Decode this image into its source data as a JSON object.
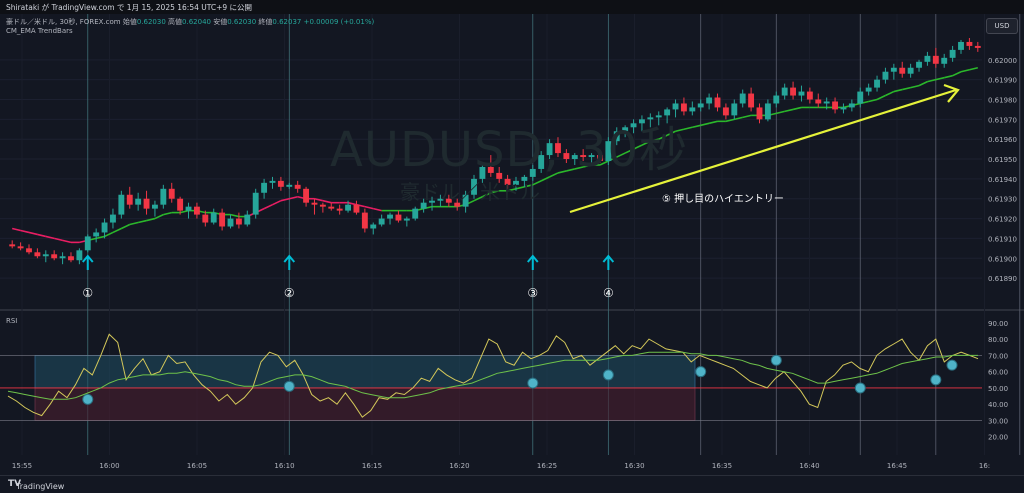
{
  "topbar": {
    "text": "Shirataki が TradingView.com で 1月 15, 2025 16:54 UTC+9 に公開"
  },
  "legend": {
    "symbol_line": "豪ドル／米ドル, 30秒, FOREX.com",
    "ohlc": [
      {
        "label": "始値",
        "value": "0.62030"
      },
      {
        "label": "高値",
        "value": "0.62040"
      },
      {
        "label": "安値",
        "value": "0.62030"
      },
      {
        "label": "終値",
        "value": "0.62037"
      }
    ],
    "change": "+0.00009 (+0.01%)",
    "indicator": "CM_EMA TrendBars",
    "rsi_label": "RSI"
  },
  "watermark": {
    "symbol": "AUDUSD, 30秒",
    "name": "豪ドル／米ドル"
  },
  "currency_button": "USD",
  "footer_brand": "TradingView",
  "colors": {
    "bg": "#131722",
    "up": "#26a69a",
    "down": "#f23645",
    "ema_up": "#2bb82b",
    "ema_down": "#e91e63",
    "arrow": "#00bcd4",
    "annotation": "#e5f23a",
    "rsi": "#d4c85a",
    "rsi_ma": "#6ec24a"
  },
  "chart_data": [
    {
      "type": "candlestick",
      "title": "",
      "x_ticks": [
        "15:55",
        "16:00",
        "16:05",
        "16:10",
        "16:15",
        "16:20",
        "16:25",
        "16:30",
        "16:35",
        "16:40",
        "16:45",
        "16:"
      ],
      "y_ticks": [
        "0.62000",
        "0.61990",
        "0.61980",
        "0.61970",
        "0.61960",
        "0.61950",
        "0.61940",
        "0.61930",
        "0.61920",
        "0.61910",
        "0.61900",
        "0.61890"
      ],
      "ylim": [
        0.61884,
        0.62012
      ],
      "candles": [
        [
          0.61907,
          0.61909,
          0.61905,
          0.61906
        ],
        [
          0.61906,
          0.61908,
          0.61904,
          0.61905
        ],
        [
          0.61905,
          0.61907,
          0.61902,
          0.61903
        ],
        [
          0.61903,
          0.61905,
          0.619,
          0.61901
        ],
        [
          0.61901,
          0.61904,
          0.61898,
          0.61902
        ],
        [
          0.61902,
          0.61904,
          0.61899,
          0.619
        ],
        [
          0.619,
          0.61903,
          0.61897,
          0.61901
        ],
        [
          0.61901,
          0.61903,
          0.61898,
          0.61899
        ],
        [
          0.61899,
          0.61905,
          0.61897,
          0.61904
        ],
        [
          0.61904,
          0.61912,
          0.61903,
          0.61911
        ],
        [
          0.61911,
          0.61915,
          0.61908,
          0.61913
        ],
        [
          0.61913,
          0.6192,
          0.6191,
          0.61918
        ],
        [
          0.61918,
          0.61925,
          0.61915,
          0.61922
        ],
        [
          0.61922,
          0.61934,
          0.6192,
          0.61932
        ],
        [
          0.61932,
          0.61936,
          0.61925,
          0.61927
        ],
        [
          0.61927,
          0.61933,
          0.61924,
          0.6193
        ],
        [
          0.6193,
          0.61934,
          0.61922,
          0.61925
        ],
        [
          0.61925,
          0.61929,
          0.61921,
          0.61927
        ],
        [
          0.61927,
          0.61937,
          0.61925,
          0.61935
        ],
        [
          0.61935,
          0.61938,
          0.61928,
          0.6193
        ],
        [
          0.6193,
          0.61931,
          0.61922,
          0.61924
        ],
        [
          0.61924,
          0.61928,
          0.6192,
          0.61926
        ],
        [
          0.61926,
          0.61928,
          0.6192,
          0.61922
        ],
        [
          0.61922,
          0.61924,
          0.61916,
          0.61918
        ],
        [
          0.61918,
          0.61925,
          0.61917,
          0.61923
        ],
        [
          0.61923,
          0.61925,
          0.61914,
          0.61916
        ],
        [
          0.61916,
          0.61922,
          0.61915,
          0.6192
        ],
        [
          0.6192,
          0.61923,
          0.61915,
          0.61917
        ],
        [
          0.61917,
          0.61924,
          0.61916,
          0.61922
        ],
        [
          0.61922,
          0.61935,
          0.6192,
          0.61933
        ],
        [
          0.61933,
          0.6194,
          0.6193,
          0.61938
        ],
        [
          0.61938,
          0.61941,
          0.61935,
          0.61939
        ],
        [
          0.61939,
          0.61941,
          0.61934,
          0.61936
        ],
        [
          0.61936,
          0.61938,
          0.61935,
          0.61937
        ],
        [
          0.61937,
          0.61939,
          0.61933,
          0.61935
        ],
        [
          0.61935,
          0.61936,
          0.61926,
          0.61928
        ],
        [
          0.61928,
          0.6193,
          0.61922,
          0.61927
        ],
        [
          0.61927,
          0.61928,
          0.61923,
          0.61926
        ],
        [
          0.61926,
          0.61928,
          0.61924,
          0.61925
        ],
        [
          0.61925,
          0.61927,
          0.61922,
          0.61924
        ],
        [
          0.61924,
          0.61929,
          0.61923,
          0.61927
        ],
        [
          0.61927,
          0.61929,
          0.61922,
          0.61923
        ],
        [
          0.61923,
          0.61925,
          0.61913,
          0.61915
        ],
        [
          0.61915,
          0.61918,
          0.61912,
          0.61917
        ],
        [
          0.61917,
          0.61922,
          0.61916,
          0.6192
        ],
        [
          0.6192,
          0.61923,
          0.61917,
          0.61922
        ],
        [
          0.61922,
          0.61924,
          0.61918,
          0.61919
        ],
        [
          0.61919,
          0.61921,
          0.61916,
          0.6192
        ],
        [
          0.6192,
          0.61926,
          0.61919,
          0.61925
        ],
        [
          0.61925,
          0.6193,
          0.61923,
          0.61928
        ],
        [
          0.61928,
          0.61931,
          0.61924,
          0.61929
        ],
        [
          0.61929,
          0.61932,
          0.61926,
          0.6193
        ],
        [
          0.6193,
          0.61932,
          0.61926,
          0.61928
        ],
        [
          0.61928,
          0.6193,
          0.61924,
          0.61926
        ],
        [
          0.61926,
          0.61934,
          0.61923,
          0.61932
        ],
        [
          0.61932,
          0.61942,
          0.6193,
          0.6194
        ],
        [
          0.6194,
          0.61948,
          0.61938,
          0.61946
        ],
        [
          0.61946,
          0.61952,
          0.61941,
          0.61943
        ],
        [
          0.61943,
          0.61946,
          0.61938,
          0.6194
        ],
        [
          0.6194,
          0.61942,
          0.61935,
          0.61937
        ],
        [
          0.61937,
          0.61941,
          0.61934,
          0.61939
        ],
        [
          0.61939,
          0.61942,
          0.61936,
          0.61941
        ],
        [
          0.61941,
          0.61947,
          0.61939,
          0.61945
        ],
        [
          0.61945,
          0.61954,
          0.61943,
          0.61952
        ],
        [
          0.61952,
          0.6196,
          0.6195,
          0.61958
        ],
        [
          0.61958,
          0.61961,
          0.61951,
          0.61953
        ],
        [
          0.61953,
          0.61955,
          0.61948,
          0.6195
        ],
        [
          0.6195,
          0.61953,
          0.61947,
          0.61952
        ],
        [
          0.61952,
          0.61955,
          0.61949,
          0.61951
        ],
        [
          0.61951,
          0.61953,
          0.61948,
          0.61952
        ],
        [
          0.61952,
          0.61954,
          0.61948,
          0.61949
        ],
        [
          0.61949,
          0.61961,
          0.61947,
          0.61959
        ],
        [
          0.61959,
          0.61966,
          0.61957,
          0.61964
        ],
        [
          0.61964,
          0.61967,
          0.61961,
          0.61966
        ],
        [
          0.61966,
          0.6197,
          0.61963,
          0.61968
        ],
        [
          0.61968,
          0.61972,
          0.61964,
          0.6197
        ],
        [
          0.6197,
          0.61973,
          0.61966,
          0.61971
        ],
        [
          0.61971,
          0.61974,
          0.61967,
          0.61972
        ],
        [
          0.61972,
          0.61976,
          0.61968,
          0.61975
        ],
        [
          0.61975,
          0.6198,
          0.61971,
          0.61978
        ],
        [
          0.61978,
          0.61981,
          0.61972,
          0.61974
        ],
        [
          0.61974,
          0.61979,
          0.61972,
          0.61976
        ],
        [
          0.61976,
          0.6198,
          0.61974,
          0.61978
        ],
        [
          0.61978,
          0.61983,
          0.61975,
          0.61981
        ],
        [
          0.61981,
          0.61983,
          0.61974,
          0.61976
        ],
        [
          0.61976,
          0.61978,
          0.6197,
          0.61972
        ],
        [
          0.61972,
          0.6198,
          0.6197,
          0.61978
        ],
        [
          0.61978,
          0.61985,
          0.61976,
          0.61983
        ],
        [
          0.61983,
          0.61986,
          0.61974,
          0.61976
        ],
        [
          0.61976,
          0.61978,
          0.61968,
          0.6197
        ],
        [
          0.6197,
          0.6198,
          0.61969,
          0.61978
        ],
        [
          0.61978,
          0.61984,
          0.61976,
          0.61982
        ],
        [
          0.61982,
          0.61988,
          0.6198,
          0.61986
        ],
        [
          0.61986,
          0.61989,
          0.6198,
          0.61982
        ],
        [
          0.61982,
          0.61987,
          0.61979,
          0.61984
        ],
        [
          0.61984,
          0.61986,
          0.61978,
          0.6198
        ],
        [
          0.6198,
          0.61983,
          0.61976,
          0.61978
        ],
        [
          0.61978,
          0.61981,
          0.61975,
          0.61979
        ],
        [
          0.61979,
          0.61981,
          0.61973,
          0.61975
        ],
        [
          0.61975,
          0.61978,
          0.61973,
          0.61976
        ],
        [
          0.61976,
          0.6198,
          0.61974,
          0.61978
        ],
        [
          0.61978,
          0.61986,
          0.61976,
          0.61984
        ],
        [
          0.61984,
          0.61988,
          0.61982,
          0.61986
        ],
        [
          0.61986,
          0.61992,
          0.61984,
          0.6199
        ],
        [
          0.6199,
          0.61996,
          0.61988,
          0.61994
        ],
        [
          0.61994,
          0.61998,
          0.6199,
          0.61996
        ],
        [
          0.61996,
          0.61999,
          0.61991,
          0.61993
        ],
        [
          0.61993,
          0.61998,
          0.61991,
          0.61996
        ],
        [
          0.61996,
          0.62,
          0.61994,
          0.61999
        ],
        [
          0.61999,
          0.62004,
          0.61997,
          0.62002
        ],
        [
          0.62002,
          0.62006,
          0.61996,
          0.61998
        ],
        [
          0.61998,
          0.62003,
          0.61996,
          0.62001
        ],
        [
          0.62001,
          0.62007,
          0.61999,
          0.62005
        ],
        [
          0.62005,
          0.6201,
          0.62003,
          0.62009
        ],
        [
          0.62009,
          0.62011,
          0.62005,
          0.62007
        ],
        [
          0.62007,
          0.62009,
          0.62004,
          0.62006
        ]
      ],
      "ema": [
        0.61915,
        0.61914,
        0.61913,
        0.61912,
        0.61911,
        0.6191,
        0.61909,
        0.61908,
        0.61908,
        0.61909,
        0.6191,
        0.61911,
        0.61913,
        0.61915,
        0.61917,
        0.61918,
        0.61919,
        0.6192,
        0.61922,
        0.61923,
        0.61923,
        0.61924,
        0.61924,
        0.61923,
        0.61923,
        0.61922,
        0.61922,
        0.61921,
        0.61921,
        0.61923,
        0.61925,
        0.61927,
        0.61929,
        0.6193,
        0.61931,
        0.6193,
        0.6193,
        0.61929,
        0.61928,
        0.61928,
        0.61928,
        0.61927,
        0.61926,
        0.61925,
        0.61924,
        0.61924,
        0.61924,
        0.61924,
        0.61924,
        0.61925,
        0.61926,
        0.61926,
        0.61926,
        0.61926,
        0.61927,
        0.61929,
        0.61931,
        0.61933,
        0.61934,
        0.61934,
        0.61935,
        0.61936,
        0.61937,
        0.61939,
        0.61941,
        0.61943,
        0.61944,
        0.61945,
        0.61946,
        0.61947,
        0.61947,
        0.61949,
        0.61951,
        0.61953,
        0.61955,
        0.61957,
        0.61959,
        0.6196,
        0.61962,
        0.61964,
        0.61965,
        0.61966,
        0.61967,
        0.61968,
        0.61969,
        0.61969,
        0.6197,
        0.61971,
        0.61972,
        0.61972,
        0.61972,
        0.61973,
        0.61974,
        0.61975,
        0.61976,
        0.61976,
        0.61976,
        0.61976,
        0.61976,
        0.61976,
        0.61977,
        0.61978,
        0.61979,
        0.6198,
        0.61982,
        0.61984,
        0.61985,
        0.61986,
        0.61987,
        0.61989,
        0.6199,
        0.61991,
        0.61992,
        0.61994,
        0.61995,
        0.61996
      ]
    },
    {
      "type": "line",
      "title": "RSI",
      "y_ticks": [
        "90.00",
        "80.00",
        "70.00",
        "60.00",
        "50.00",
        "40.00",
        "30.00",
        "20.00"
      ],
      "ylim": [
        18,
        93
      ],
      "levels": [
        70,
        50,
        30
      ],
      "rsi": [
        45,
        42,
        38,
        35,
        33,
        40,
        48,
        44,
        52,
        62,
        58,
        70,
        83,
        78,
        55,
        62,
        68,
        58,
        60,
        70,
        65,
        66,
        58,
        52,
        48,
        42,
        46,
        40,
        44,
        50,
        66,
        72,
        70,
        63,
        67,
        58,
        46,
        42,
        44,
        40,
        47,
        40,
        32,
        36,
        44,
        43,
        47,
        46,
        50,
        56,
        54,
        62,
        58,
        55,
        53,
        56,
        68,
        80,
        77,
        66,
        64,
        72,
        68,
        70,
        73,
        82,
        78,
        68,
        70,
        64,
        68,
        72,
        76,
        71,
        76,
        74,
        80,
        77,
        74,
        73,
        72,
        66,
        70,
        68,
        66,
        64,
        62,
        58,
        54,
        52,
        50,
        56,
        60,
        54,
        48,
        40,
        38,
        54,
        58,
        64,
        66,
        62,
        60,
        70,
        74,
        77,
        80,
        72,
        67,
        76,
        80,
        66,
        70,
        72,
        70,
        68
      ],
      "rsi_ma": [
        48,
        47,
        46,
        45,
        44,
        43,
        43,
        43,
        44,
        46,
        48,
        50,
        53,
        55,
        56,
        57,
        58,
        58,
        58,
        59,
        59,
        60,
        59,
        58,
        57,
        55,
        54,
        52,
        51,
        51,
        52,
        54,
        56,
        57,
        58,
        58,
        57,
        55,
        53,
        52,
        51,
        49,
        47,
        46,
        45,
        44,
        44,
        44,
        45,
        46,
        47,
        49,
        50,
        51,
        52,
        53,
        55,
        57,
        59,
        60,
        61,
        62,
        63,
        64,
        65,
        66,
        67,
        67,
        67,
        67,
        67,
        68,
        69,
        70,
        70,
        71,
        72,
        72,
        72,
        72,
        72,
        71,
        71,
        70,
        70,
        69,
        68,
        67,
        65,
        64,
        62,
        61,
        60,
        59,
        57,
        55,
        53,
        53,
        54,
        55,
        56,
        57,
        58,
        59,
        61,
        63,
        65,
        66,
        67,
        68,
        69,
        69,
        70,
        70,
        70,
        70
      ]
    }
  ],
  "annotations": {
    "entry_labels": [
      "①",
      "②",
      "③",
      "④"
    ],
    "trend_label": "⑤ 押し目のハイエントリー"
  }
}
